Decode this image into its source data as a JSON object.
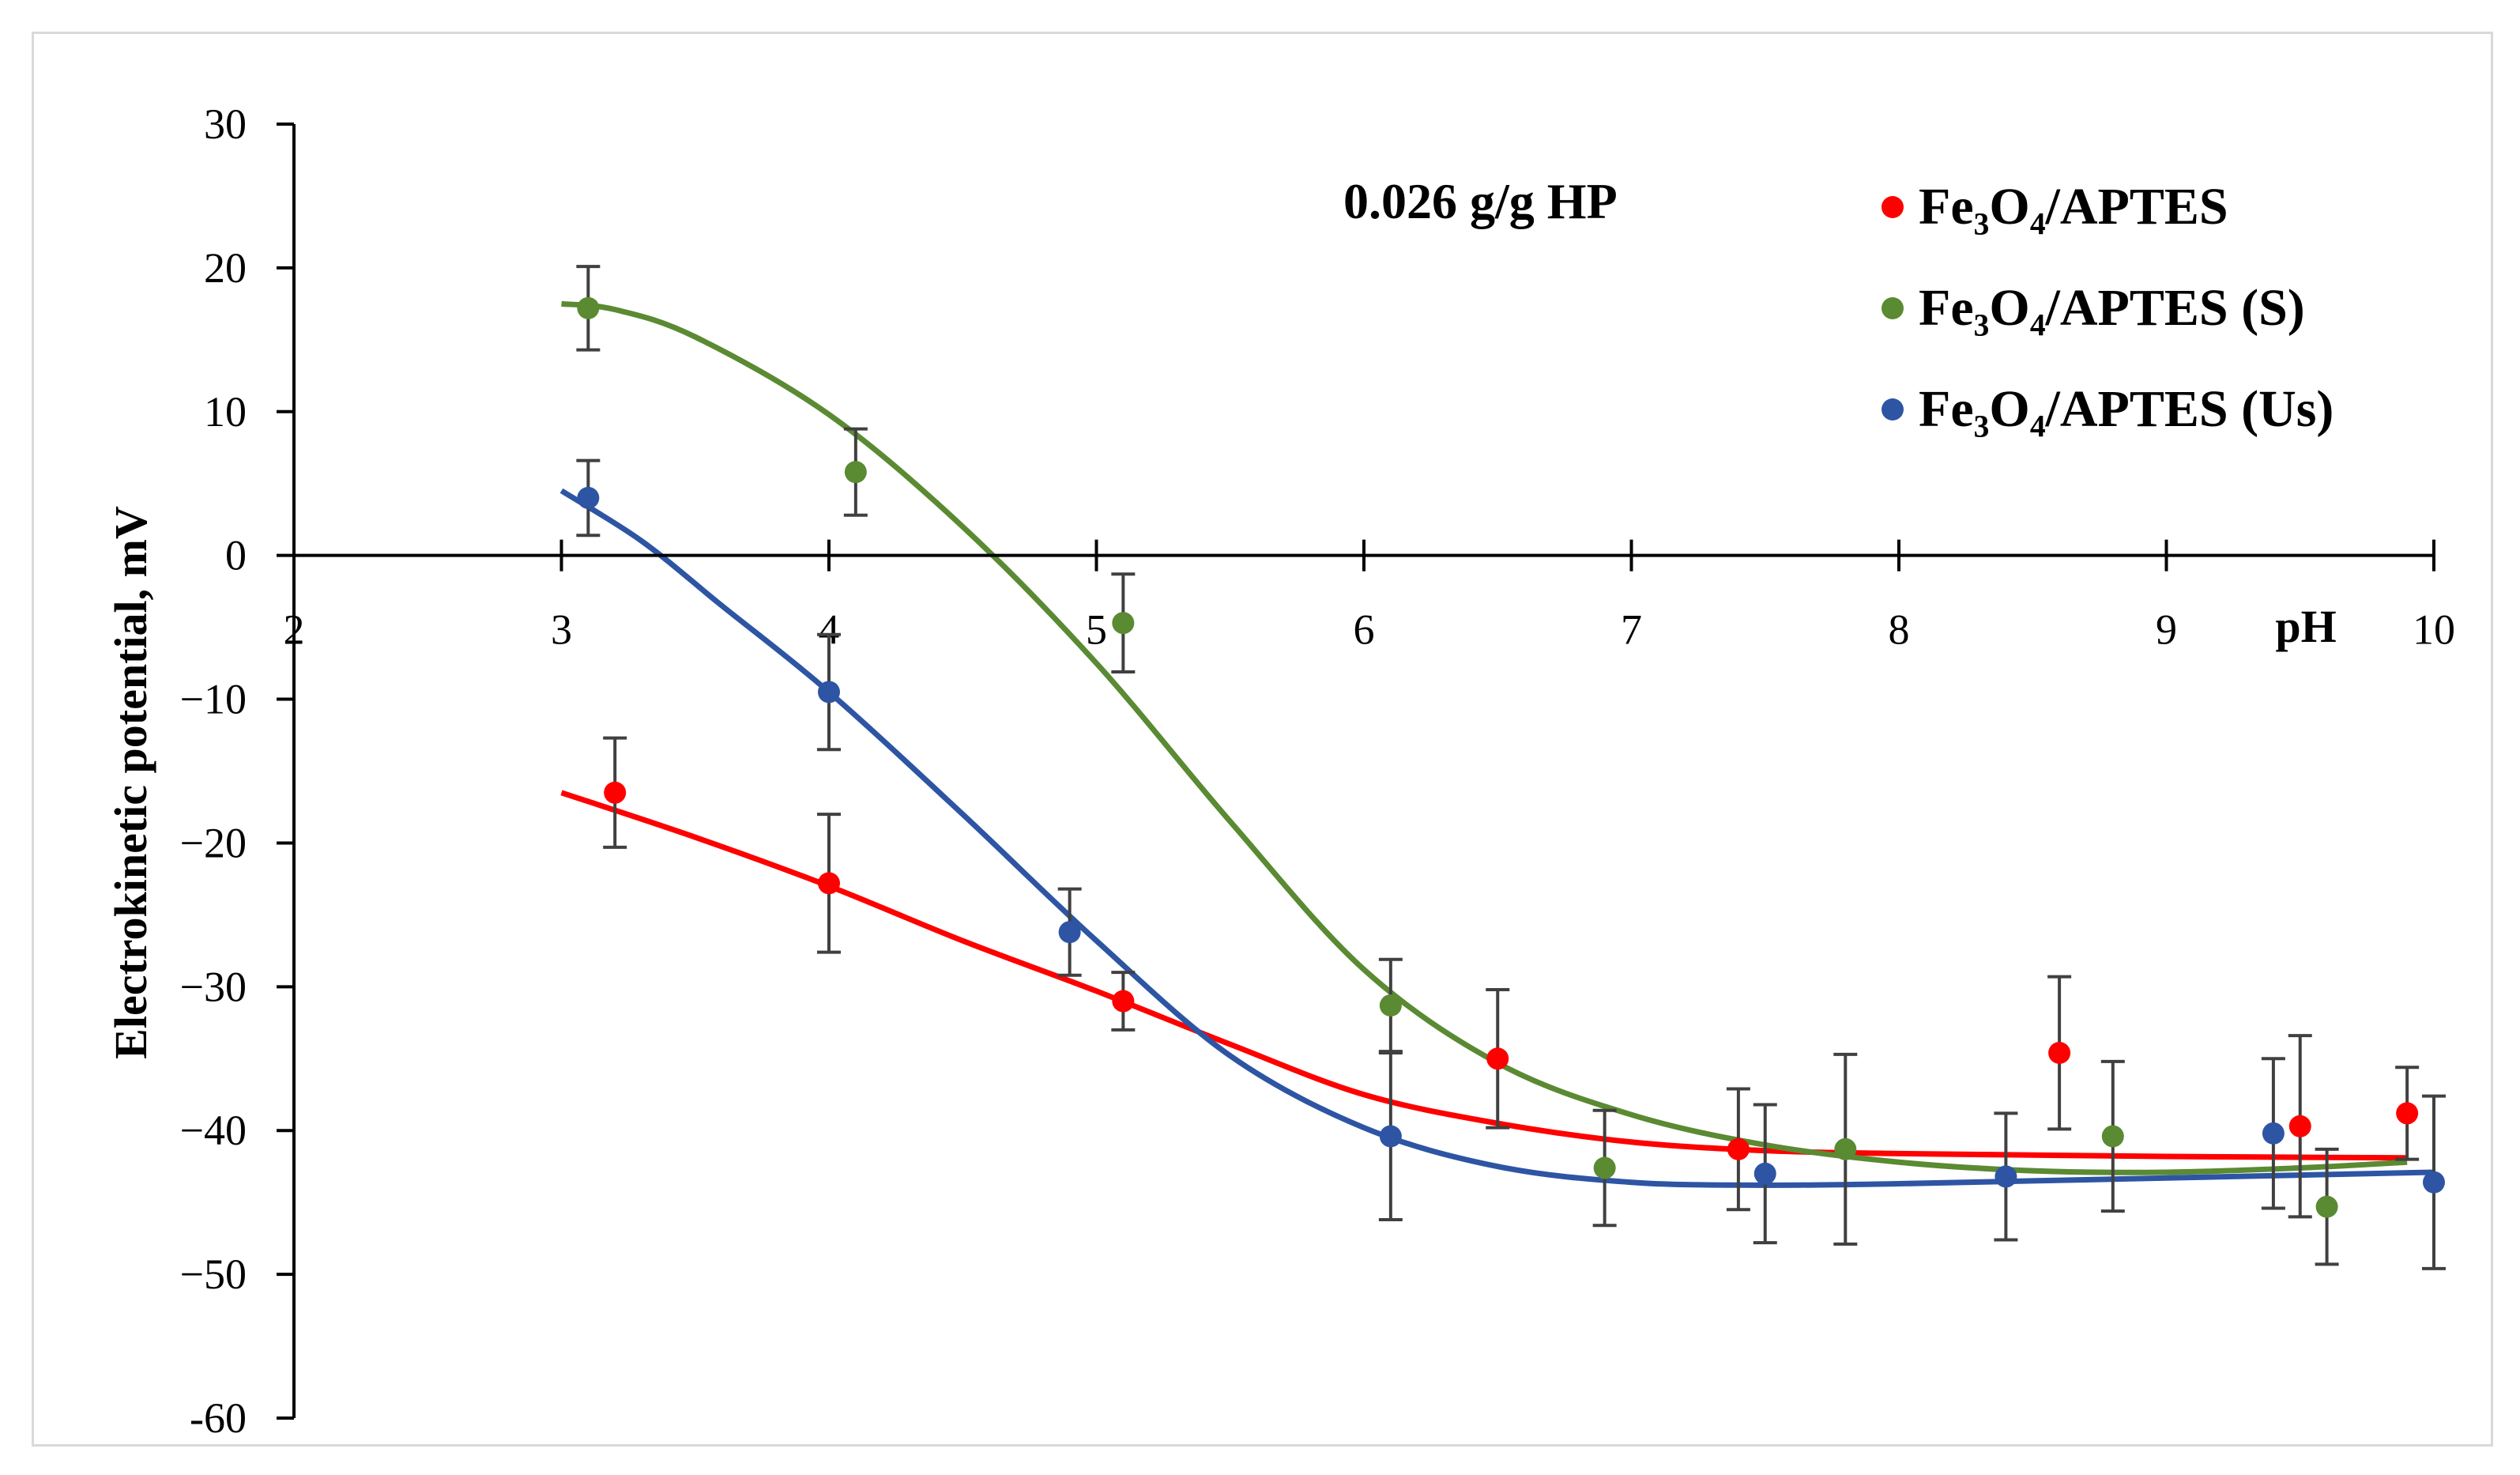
{
  "chart_data": {
    "type": "scatter",
    "title": "",
    "annotation": "0.026 g/g HP",
    "xlabel": "pH",
    "ylabel": "Electrokinetic potential, mV",
    "xlim": [
      2,
      10
    ],
    "ylim": [
      -60,
      30
    ],
    "xticks": [
      2,
      3,
      4,
      5,
      6,
      7,
      8,
      9,
      10
    ],
    "yticks": [
      30,
      20,
      10,
      0,
      -10,
      -20,
      -30,
      -40,
      -50,
      -60
    ],
    "ytick_labels": [
      "30",
      "20",
      "10",
      "0",
      "−10",
      "−20",
      "−30",
      "−40",
      "−50",
      "-60"
    ],
    "legend_position": "top-right",
    "series": [
      {
        "name": "Fe₃O₄/APTES",
        "color": "#ff0000",
        "x": [
          3.2,
          4.0,
          5.1,
          6.5,
          7.4,
          8.6,
          9.5,
          9.9
        ],
        "y": [
          -16.5,
          -22.8,
          -31.0,
          -35.0,
          -41.3,
          -34.6,
          -39.7,
          -38.8
        ],
        "err": [
          3.8,
          4.8,
          2.0,
          4.8,
          4.2,
          5.3,
          6.3,
          3.2
        ],
        "fit_x": [
          3.0,
          3.5,
          4.0,
          4.5,
          5.0,
          5.5,
          6.0,
          6.5,
          7.0,
          7.5,
          8.0,
          9.0,
          9.9
        ],
        "fit_y": [
          -16.5,
          -19.6,
          -23.0,
          -26.8,
          -30.3,
          -34.0,
          -37.5,
          -39.5,
          -40.8,
          -41.4,
          -41.6,
          -41.8,
          -41.9
        ]
      },
      {
        "name": "Fe₃O₄/APTES (S)",
        "color": "#5a8a32",
        "x": [
          3.1,
          4.1,
          5.1,
          6.1,
          6.9,
          7.8,
          8.8,
          9.6
        ],
        "y": [
          17.2,
          5.8,
          -4.7,
          -31.3,
          -42.6,
          -41.3,
          -40.4,
          -45.3
        ],
        "err": [
          2.9,
          3.0,
          3.4,
          3.2,
          4.0,
          6.6,
          5.2,
          4.0
        ],
        "fit_x": [
          3.0,
          3.2,
          3.5,
          4.0,
          4.5,
          5.0,
          5.5,
          6.0,
          6.5,
          7.0,
          7.5,
          8.0,
          8.5,
          9.0,
          9.5,
          9.9
        ],
        "fit_y": [
          17.5,
          17.1,
          15.2,
          9.8,
          2.0,
          -7.5,
          -18.5,
          -28.8,
          -35.3,
          -38.9,
          -41.0,
          -42.2,
          -42.8,
          -42.9,
          -42.6,
          -42.2
        ]
      },
      {
        "name": "Fe₃O₄/APTES (Us)",
        "color": "#2e55a4",
        "x": [
          3.1,
          4.0,
          4.9,
          6.1,
          7.5,
          8.4,
          9.4,
          10.0
        ],
        "y": [
          4.0,
          -9.5,
          -26.2,
          -40.4,
          -43.0,
          -43.2,
          -40.2,
          -43.6
        ],
        "err": [
          2.6,
          4.0,
          3.0,
          5.8,
          4.8,
          4.4,
          5.2,
          6.0
        ],
        "fit_x": [
          3.0,
          3.3,
          3.6,
          4.0,
          4.5,
          5.0,
          5.5,
          6.0,
          6.5,
          7.0,
          7.5,
          8.0,
          8.5,
          9.0,
          9.5,
          10.0
        ],
        "fit_y": [
          4.5,
          1.0,
          -3.5,
          -9.5,
          -18.0,
          -26.8,
          -34.8,
          -39.8,
          -42.5,
          -43.6,
          -43.8,
          -43.7,
          -43.5,
          -43.3,
          -43.1,
          -42.9
        ]
      }
    ]
  }
}
